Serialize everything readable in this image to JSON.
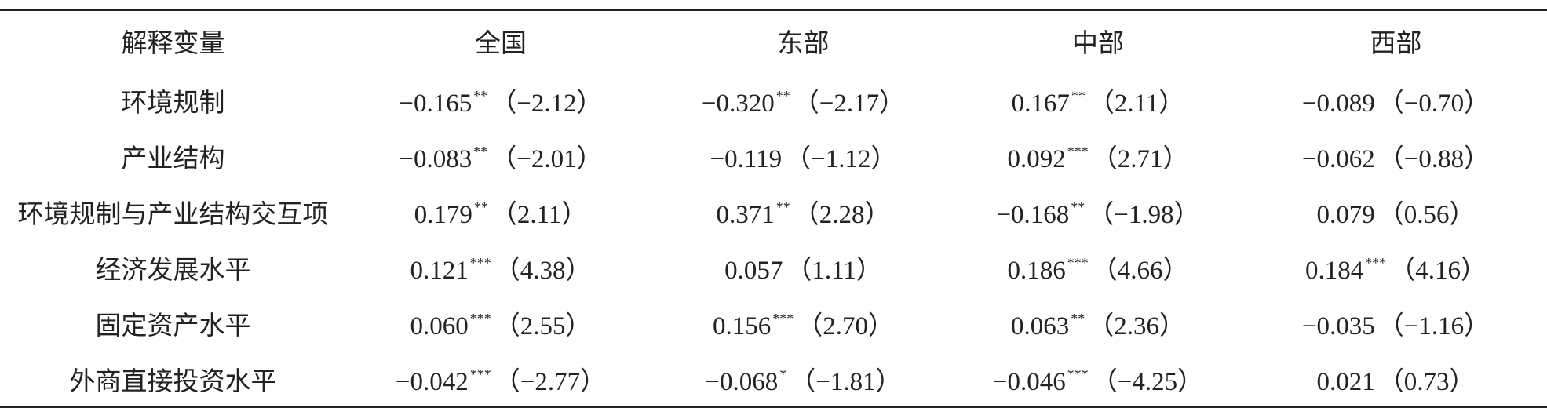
{
  "table": {
    "header": [
      "解释变量",
      "全国",
      "东部",
      "中部",
      "西部"
    ],
    "rows": [
      {
        "label": "环境规制",
        "cells": [
          {
            "value": "−0.165",
            "stars": "**",
            "t": "（−2.12）"
          },
          {
            "value": "−0.320",
            "stars": "**",
            "t": "（−2.17）"
          },
          {
            "value": "0.167",
            "stars": "**",
            "t": "（2.11）"
          },
          {
            "value": "−0.089",
            "stars": "",
            "t": "（−0.70）"
          }
        ]
      },
      {
        "label": "产业结构",
        "cells": [
          {
            "value": "−0.083",
            "stars": "**",
            "t": "（−2.01）"
          },
          {
            "value": "−0.119",
            "stars": "",
            "t": "（−1.12）"
          },
          {
            "value": "0.092",
            "stars": "***",
            "t": "（2.71）"
          },
          {
            "value": "−0.062",
            "stars": "",
            "t": "（−0.88）"
          }
        ]
      },
      {
        "label": "环境规制与产业结构交互项",
        "cells": [
          {
            "value": "0.179",
            "stars": "**",
            "t": "（2.11）"
          },
          {
            "value": "0.371",
            "stars": "**",
            "t": "（2.28）"
          },
          {
            "value": "−0.168",
            "stars": "**",
            "t": "（−1.98）"
          },
          {
            "value": "0.079",
            "stars": "",
            "t": "（0.56）"
          }
        ]
      },
      {
        "label": "经济发展水平",
        "cells": [
          {
            "value": "0.121",
            "stars": "***",
            "t": "（4.38）"
          },
          {
            "value": "0.057",
            "stars": "",
            "t": "（1.11）"
          },
          {
            "value": "0.186",
            "stars": "***",
            "t": "（4.66）"
          },
          {
            "value": "0.184",
            "stars": "***",
            "t": "（4.16）"
          }
        ]
      },
      {
        "label": "固定资产水平",
        "cells": [
          {
            "value": "0.060",
            "stars": "***",
            "t": "（2.55）"
          },
          {
            "value": "0.156",
            "stars": "***",
            "t": "（2.70）"
          },
          {
            "value": "0.063",
            "stars": "**",
            "t": "（2.36）"
          },
          {
            "value": "−0.035",
            "stars": "",
            "t": "（−1.16）"
          }
        ]
      },
      {
        "label": "外商直接投资水平",
        "cells": [
          {
            "value": "−0.042",
            "stars": "***",
            "t": "（−2.77）"
          },
          {
            "value": "−0.068",
            "stars": "*",
            "t": "（−1.81）"
          },
          {
            "value": "−0.046",
            "stars": "***",
            "t": "（−4.25）"
          },
          {
            "value": "0.021",
            "stars": "",
            "t": "（0.73）"
          }
        ]
      }
    ]
  }
}
